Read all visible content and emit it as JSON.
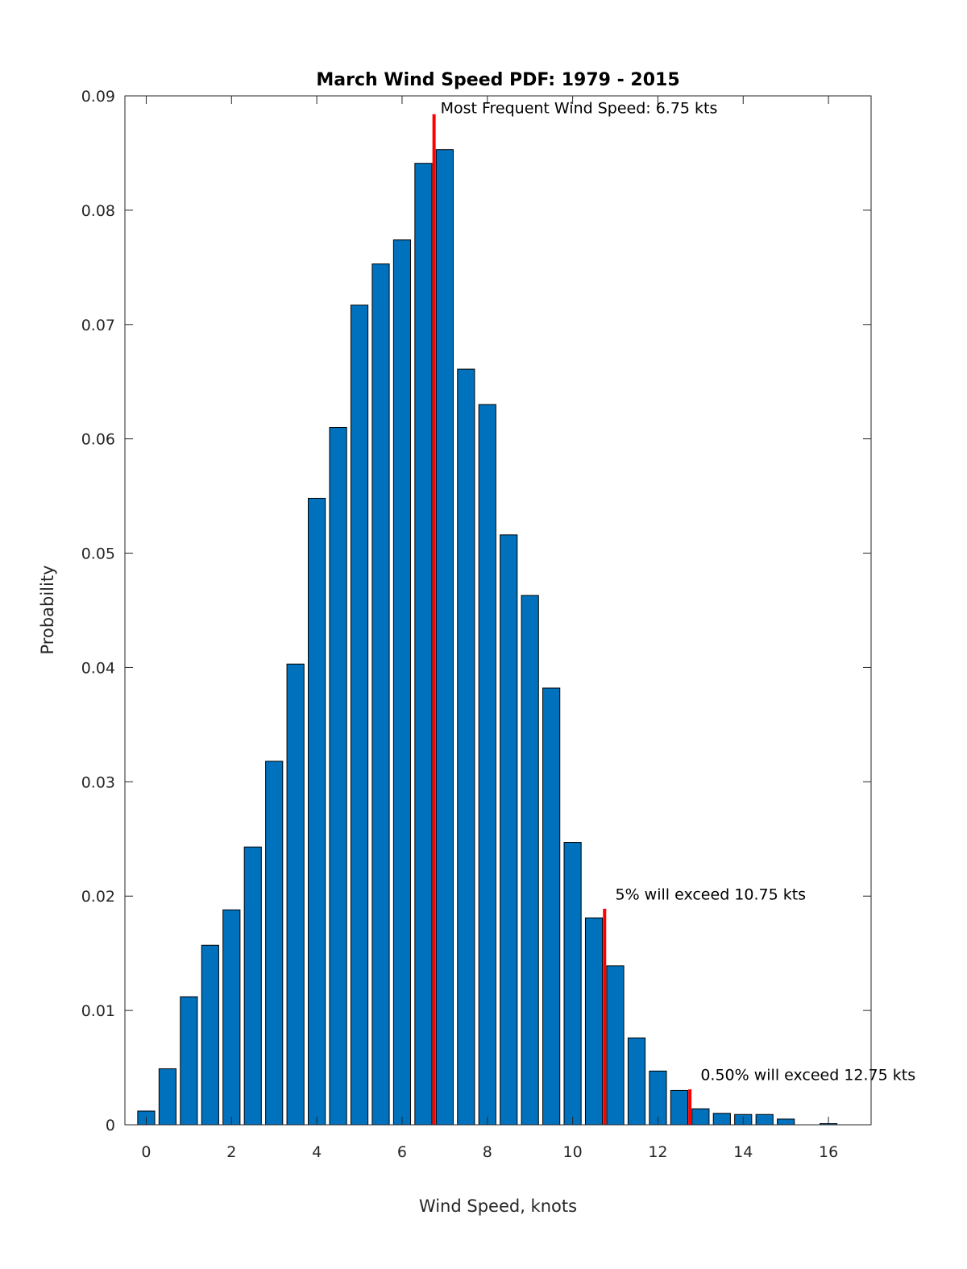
{
  "chart_data": {
    "type": "bar",
    "title": "March Wind Speed PDF: 1979 - 2015",
    "xlabel": "Wind Speed, knots",
    "ylabel": "Probability",
    "xlim": [
      -0.5,
      17
    ],
    "ylim": [
      0,
      0.09
    ],
    "xticks": [
      0,
      2,
      4,
      6,
      8,
      10,
      12,
      14,
      16
    ],
    "xtick_labels": [
      "0",
      "2",
      "4",
      "6",
      "8",
      "10",
      "12",
      "14",
      "16"
    ],
    "yticks": [
      0,
      0.01,
      0.02,
      0.03,
      0.04,
      0.05,
      0.06,
      0.07,
      0.08,
      0.09
    ],
    "ytick_labels": [
      "0",
      "0.01",
      "0.02",
      "0.03",
      "0.04",
      "0.05",
      "0.06",
      "0.07",
      "0.08",
      "0.09"
    ],
    "bar_width": 0.4,
    "grid": false,
    "colors": {
      "bar": "#0072bd",
      "edge": "#000000",
      "marker": "#ff0000"
    },
    "x": [
      0,
      0.5,
      1,
      1.5,
      2,
      2.5,
      3,
      3.5,
      4,
      4.5,
      5,
      5.5,
      6,
      6.5,
      7,
      7.5,
      8,
      8.5,
      9,
      9.5,
      10,
      10.5,
      11,
      11.5,
      12,
      12.5,
      13,
      13.5,
      14,
      14.5,
      15,
      15.5,
      16
    ],
    "values": [
      0.0012,
      0.0049,
      0.0112,
      0.0157,
      0.0188,
      0.0243,
      0.0318,
      0.0403,
      0.0548,
      0.061,
      0.0717,
      0.0753,
      0.0774,
      0.0841,
      0.0853,
      0.0661,
      0.063,
      0.0516,
      0.0463,
      0.0382,
      0.0247,
      0.0181,
      0.0139,
      0.0076,
      0.0047,
      0.003,
      0.0014,
      0.001,
      0.0009,
      0.0009,
      0.0005,
      0,
      0.0001
    ],
    "markers": [
      {
        "x": 6.75,
        "y_top": 0.0884,
        "label": "Most Frequent Wind Speed: 6.75 kts",
        "label_x": 6.9,
        "label_y": 0.0885
      },
      {
        "x": 10.75,
        "y_top": 0.0189,
        "label": "5% will exceed 10.75 kts",
        "label_x": 11.0,
        "label_y": 0.0197
      },
      {
        "x": 12.75,
        "y_top": 0.0031,
        "label": "0.50% will exceed 12.75 kts",
        "label_x": 13.0,
        "label_y": 0.0039
      }
    ]
  }
}
